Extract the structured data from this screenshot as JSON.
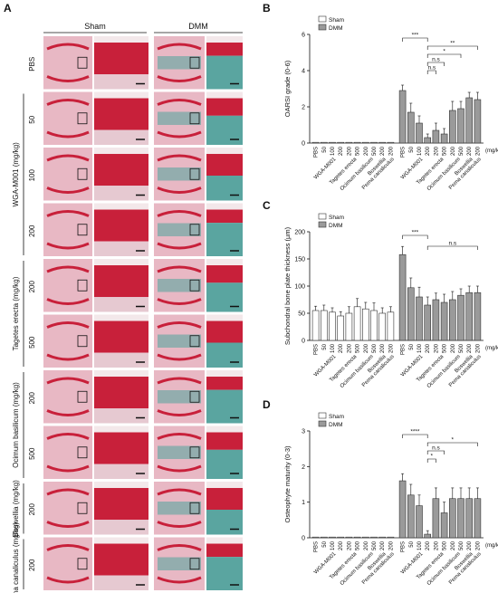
{
  "figure": {
    "panel_letters": {
      "A": "A",
      "B": "B",
      "C": "C",
      "D": "D"
    },
    "histology": {
      "column_headers": [
        "Sham",
        "DMM"
      ],
      "group_labels": [
        "WGA-M001 (mg/kg)",
        "Tagetes erecta (mg/kg)",
        "Ocimum basilicum (mg/kg)",
        "Boswellia (mg/kg)",
        "Perna canaliculus (mg/kg)"
      ],
      "rows": [
        {
          "dose": "PBS",
          "group": -1
        },
        {
          "dose": "50",
          "group": 0
        },
        {
          "dose": "100",
          "group": 0
        },
        {
          "dose": "200",
          "group": 0
        },
        {
          "dose": "200",
          "group": 1
        },
        {
          "dose": "500",
          "group": 1
        },
        {
          "dose": "200",
          "group": 2
        },
        {
          "dose": "500",
          "group": 2
        },
        {
          "dose": "200",
          "group": 3
        },
        {
          "dose": "200",
          "group": 4
        }
      ],
      "colors": {
        "cartilage": "#c8203a",
        "stain_green": "#5aa5a0",
        "bone_pink": "#e8b8c4"
      }
    }
  },
  "chart_data": [
    {
      "type": "bar",
      "panel": "B",
      "ylabel": "OARSI grade (0-6)",
      "ylim": [
        0,
        6
      ],
      "yticks": [
        0,
        2,
        4,
        6
      ],
      "categories": [
        "PBS",
        "50",
        "100",
        "200",
        "200",
        "500",
        "200",
        "500",
        "200",
        "200"
      ],
      "group_labels": [
        {
          "label": "WGA-M001",
          "from": 1,
          "to": 3
        },
        {
          "label": "Tagetes erecta",
          "from": 4,
          "to": 5
        },
        {
          "label": "Ocimum basilicum",
          "from": 6,
          "to": 7
        },
        {
          "label": "Boswellia",
          "from": 8,
          "to": 8
        },
        {
          "label": "Perna canaliculus",
          "from": 9,
          "to": 9
        }
      ],
      "unit_label": "(mg/kg)",
      "series": [
        {
          "name": "Sham",
          "values": [
            0,
            0,
            0,
            0,
            0,
            0,
            0,
            0,
            0,
            0
          ],
          "errors": [
            0,
            0,
            0,
            0,
            0,
            0,
            0,
            0,
            0,
            0
          ]
        },
        {
          "name": "DMM",
          "values": [
            2.9,
            1.7,
            1.1,
            0.3,
            0.7,
            0.5,
            1.8,
            1.9,
            2.5,
            2.4
          ],
          "errors": [
            0.3,
            0.5,
            0.4,
            0.2,
            0.4,
            0.3,
            0.5,
            0.4,
            0.3,
            0.4
          ]
        }
      ],
      "significance": [
        {
          "from": 0,
          "to": 3,
          "label": "***"
        },
        {
          "from": 3,
          "to": 9,
          "label": "**"
        },
        {
          "from": 3,
          "to": 7,
          "label": "*"
        },
        {
          "from": 3,
          "to": 5,
          "label": "n.s"
        },
        {
          "from": 3,
          "to": 4,
          "label": "n.s"
        }
      ],
      "legend": "top-left"
    },
    {
      "type": "bar",
      "panel": "C",
      "ylabel": "Subchondral bone plate thickness (µm)",
      "ylim": [
        0,
        200
      ],
      "yticks": [
        0,
        50,
        100,
        150,
        200
      ],
      "categories": [
        "PBS",
        "50",
        "100",
        "200",
        "200",
        "500",
        "200",
        "500",
        "200",
        "200"
      ],
      "group_labels": [
        {
          "label": "WGA-M001",
          "from": 1,
          "to": 3
        },
        {
          "label": "Tagetes erecta",
          "from": 4,
          "to": 5
        },
        {
          "label": "Ocimum basilicum",
          "from": 6,
          "to": 7
        },
        {
          "label": "Boswellia",
          "from": 8,
          "to": 8
        },
        {
          "label": "Perna canaliculus",
          "from": 9,
          "to": 9
        }
      ],
      "unit_label": "(mg/kg)",
      "series": [
        {
          "name": "Sham",
          "values": [
            55,
            55,
            52,
            45,
            50,
            62,
            58,
            55,
            50,
            52
          ],
          "errors": [
            8,
            10,
            8,
            8,
            12,
            15,
            12,
            14,
            10,
            10
          ]
        },
        {
          "name": "DMM",
          "values": [
            158,
            97,
            80,
            65,
            75,
            70,
            75,
            83,
            88,
            88
          ],
          "errors": [
            15,
            18,
            18,
            15,
            12,
            15,
            15,
            12,
            12,
            12
          ]
        }
      ],
      "significance": [
        {
          "from": 0,
          "to": 3,
          "label": "***"
        },
        {
          "from": 3,
          "to": 9,
          "label": "n.s"
        }
      ],
      "legend": "top-left"
    },
    {
      "type": "bar",
      "panel": "D",
      "ylabel": "Osteophyte maturity (0-3)",
      "ylim": [
        0,
        3
      ],
      "yticks": [
        0,
        1,
        2,
        3
      ],
      "categories": [
        "PBS",
        "50",
        "100",
        "200",
        "200",
        "500",
        "200",
        "500",
        "200",
        "200"
      ],
      "group_labels": [
        {
          "label": "WGA-M001",
          "from": 1,
          "to": 3
        },
        {
          "label": "Tagetes erecta",
          "from": 4,
          "to": 5
        },
        {
          "label": "Ocimum basilicum",
          "from": 6,
          "to": 7
        },
        {
          "label": "Boswellia",
          "from": 8,
          "to": 8
        },
        {
          "label": "Perna canaliculus",
          "from": 9,
          "to": 9
        }
      ],
      "unit_label": "(mg/kg)",
      "series": [
        {
          "name": "Sham",
          "values": [
            0,
            0,
            0,
            0,
            0,
            0,
            0,
            0,
            0,
            0
          ],
          "errors": [
            0,
            0,
            0,
            0,
            0,
            0,
            0,
            0,
            0,
            0
          ]
        },
        {
          "name": "DMM",
          "values": [
            1.6,
            1.2,
            0.9,
            0.1,
            1.1,
            0.7,
            1.1,
            1.1,
            1.1,
            1.1
          ],
          "errors": [
            0.2,
            0.3,
            0.3,
            0.1,
            0.3,
            0.3,
            0.3,
            0.3,
            0.3,
            0.3
          ]
        }
      ],
      "significance": [
        {
          "from": 0,
          "to": 3,
          "label": "****"
        },
        {
          "from": 3,
          "to": 9,
          "label": "*"
        },
        {
          "from": 3,
          "to": 5,
          "label": "n.s"
        },
        {
          "from": 3,
          "to": 4,
          "label": "*"
        }
      ],
      "legend": "top-left"
    }
  ]
}
